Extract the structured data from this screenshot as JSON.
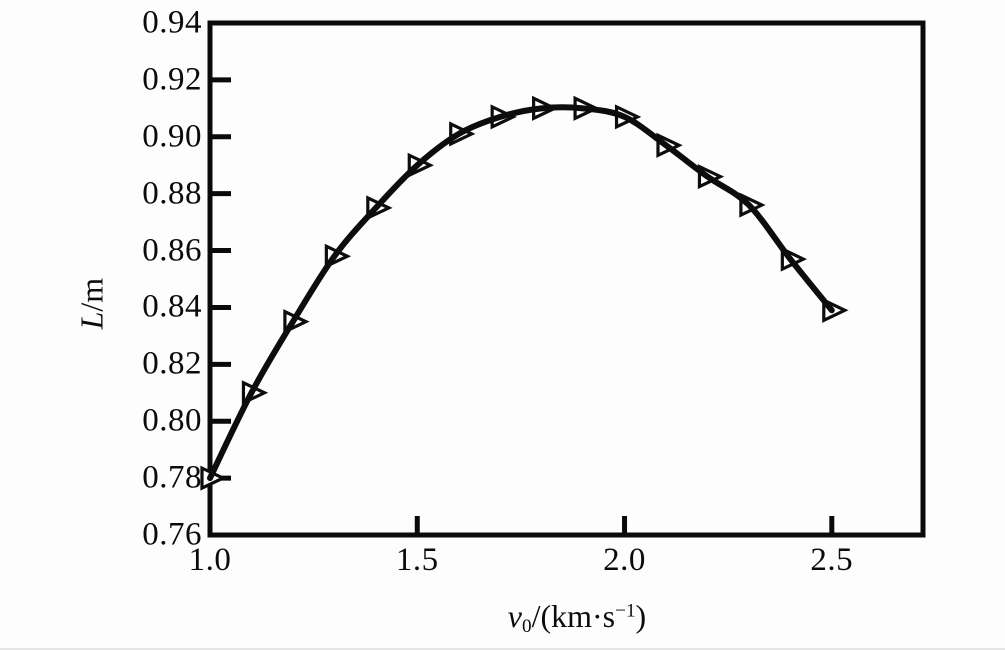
{
  "figure": {
    "background": "#fdfdfd",
    "axis_color": "#0a0a0a",
    "curve_color": "#0d0d0d",
    "marker_fill": "#ffffff",
    "text_color": "#0b0b0b"
  },
  "chart_data": {
    "type": "line",
    "title": "",
    "xlabel": "v0/(km·s−1)",
    "ylabel": "L/m",
    "xlabel_parts": {
      "variable": "v",
      "subscript": "0",
      "mid": "/(km·s",
      "superscript": "−1",
      "end": ")"
    },
    "ylabel_parts": {
      "variable": "L",
      "rest": "/m"
    },
    "x": [
      1.0,
      1.1,
      1.2,
      1.3,
      1.4,
      1.5,
      1.6,
      1.7,
      1.8,
      1.9,
      2.0,
      2.1,
      2.2,
      2.3,
      2.4,
      2.5
    ],
    "y": [
      0.78,
      0.81,
      0.835,
      0.858,
      0.875,
      0.89,
      0.901,
      0.907,
      0.91,
      0.91,
      0.907,
      0.897,
      0.886,
      0.876,
      0.857,
      0.839
    ],
    "xlim": [
      1.0,
      2.72
    ],
    "ylim": [
      0.76,
      0.94
    ],
    "xticks": [
      1.0,
      1.5,
      2.0,
      2.5
    ],
    "xtick_labels": [
      "1.0",
      "1.5",
      "2.0",
      "2.5"
    ],
    "yticks": [
      0.76,
      0.78,
      0.8,
      0.82,
      0.84,
      0.86,
      0.88,
      0.9,
      0.92,
      0.94
    ],
    "ytick_labels": [
      "0.76",
      "0.78",
      "0.80",
      "0.82",
      "0.84",
      "0.86",
      "0.88",
      "0.90",
      "0.92",
      "0.94"
    ],
    "grid": false,
    "legend_position": "none",
    "marker": "right-triangle-open"
  }
}
